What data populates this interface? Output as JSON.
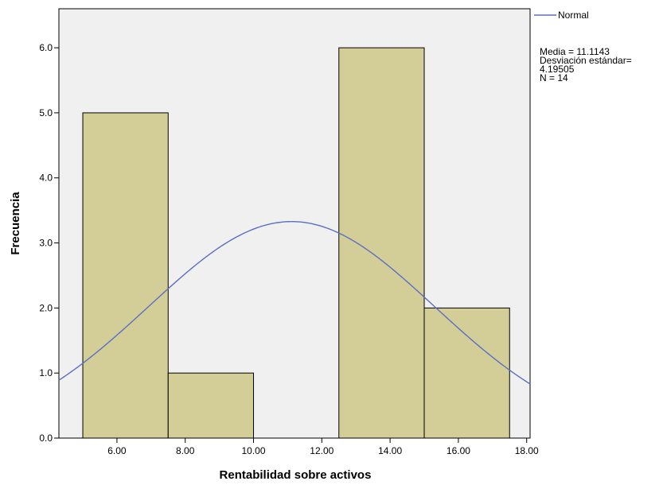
{
  "chart_data": {
    "type": "bar",
    "subtype": "histogram",
    "xlabel": "Rentabilidad sobre activos",
    "ylabel": "Frecuencia",
    "xlim": [
      4.3,
      18.1
    ],
    "ylim": [
      0,
      6.6
    ],
    "x_ticks": [
      6,
      8,
      10,
      12,
      14,
      16,
      18
    ],
    "x_tick_labels": [
      "6.00",
      "8.00",
      "10.00",
      "12.00",
      "14.00",
      "16.00",
      "18.00"
    ],
    "y_ticks": [
      0,
      1,
      2,
      3,
      4,
      5,
      6
    ],
    "y_tick_labels": [
      "0.0",
      "1.0",
      "2.0",
      "3.0",
      "4.0",
      "5.0",
      "6.0"
    ],
    "bins": [
      {
        "start": 5.0,
        "end": 7.5,
        "count": 5
      },
      {
        "start": 7.5,
        "end": 10.0,
        "count": 1
      },
      {
        "start": 12.5,
        "end": 15.0,
        "count": 6
      },
      {
        "start": 15.0,
        "end": 17.5,
        "count": 2
      }
    ],
    "bin_width": 2.5,
    "normal_curve": {
      "mean": 11.1143,
      "sd": 4.19505,
      "n": 14
    },
    "legend": {
      "series_name": "Normal",
      "stats": [
        "Media = 11.1143",
        "Desviación estándar=",
        "4.19505",
        "N = 14"
      ],
      "position": "top-right"
    },
    "colors": {
      "plot_background": "#f0f0f0",
      "bar_fill": "#d3ce97",
      "bar_stroke": "#000000",
      "curve": "#5b6fc2"
    }
  }
}
